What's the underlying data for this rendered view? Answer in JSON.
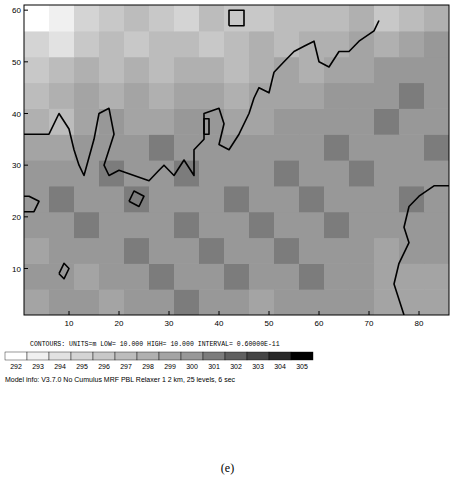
{
  "chart_data": {
    "type": "heatmap",
    "xlim": [
      1,
      86
    ],
    "ylim": [
      1,
      61
    ],
    "xticks": [
      10,
      20,
      30,
      40,
      50,
      60,
      70,
      80
    ],
    "yticks": [
      10,
      20,
      30,
      40,
      50,
      60
    ],
    "x_bins": [
      1,
      6,
      11,
      16,
      21,
      26,
      31,
      36,
      41,
      46,
      51,
      56,
      61,
      66,
      71,
      76,
      81,
      86
    ],
    "y_bins": [
      1,
      6,
      11,
      16,
      21,
      26,
      31,
      36,
      41,
      46,
      51,
      56,
      61
    ],
    "cells": [
      [
        299,
        300,
        300,
        299,
        300,
        300,
        301,
        300,
        300,
        299,
        300,
        300,
        300,
        300,
        299,
        299,
        299
      ],
      [
        300,
        300,
        299,
        300,
        300,
        301,
        300,
        300,
        301,
        300,
        300,
        301,
        300,
        300,
        299,
        299,
        299
      ],
      [
        299,
        300,
        300,
        300,
        301,
        300,
        300,
        301,
        300,
        300,
        301,
        300,
        300,
        300,
        299,
        300,
        300
      ],
      [
        300,
        300,
        301,
        300,
        300,
        300,
        301,
        300,
        300,
        301,
        300,
        300,
        301,
        300,
        300,
        300,
        300
      ],
      [
        300,
        301,
        300,
        300,
        301,
        300,
        300,
        300,
        301,
        300,
        300,
        301,
        300,
        300,
        300,
        301,
        300
      ],
      [
        300,
        300,
        300,
        301,
        300,
        300,
        301,
        300,
        300,
        300,
        301,
        300,
        300,
        301,
        300,
        300,
        300
      ],
      [
        299,
        299,
        300,
        300,
        300,
        301,
        300,
        300,
        300,
        300,
        300,
        300,
        301,
        300,
        300,
        300,
        301
      ],
      [
        298,
        297,
        299,
        300,
        299,
        299,
        300,
        300,
        299,
        299,
        300,
        300,
        300,
        300,
        301,
        300,
        300
      ],
      [
        297,
        298,
        299,
        298,
        299,
        298,
        299,
        299,
        298,
        299,
        299,
        299,
        300,
        300,
        300,
        301,
        300
      ],
      [
        296,
        297,
        298,
        297,
        298,
        297,
        298,
        298,
        297,
        298,
        299,
        298,
        299,
        299,
        300,
        300,
        300
      ],
      [
        295,
        294,
        296,
        297,
        296,
        297,
        297,
        296,
        297,
        298,
        297,
        298,
        298,
        299,
        298,
        299,
        300
      ],
      [
        292,
        293,
        295,
        296,
        297,
        296,
        295,
        297,
        296,
        296,
        297,
        297,
        297,
        298,
        296,
        297,
        298
      ]
    ],
    "contours": [
      {
        "x": [
          1,
          6,
          8,
          10,
          11,
          12,
          13,
          15,
          16,
          18,
          19,
          18,
          17,
          18,
          20,
          23,
          26,
          28,
          29,
          31,
          33,
          35,
          35,
          37,
          37,
          40,
          41,
          40,
          42,
          44,
          46,
          47,
          48,
          50,
          51,
          53,
          55,
          57,
          59,
          60,
          62,
          64,
          66,
          68,
          71,
          72
        ],
        "y": [
          36,
          36,
          40,
          37,
          33,
          30,
          28,
          35,
          40,
          41,
          36,
          33,
          30,
          28,
          29,
          28,
          27,
          29,
          30,
          28,
          31,
          28,
          33,
          35,
          40,
          41,
          38,
          34,
          33,
          36,
          40,
          43,
          45,
          44,
          48,
          50,
          52,
          53,
          54,
          50,
          49,
          52,
          52,
          54,
          56,
          58
        ]
      },
      {
        "x": [
          86,
          83,
          80,
          78,
          77,
          78,
          76,
          75,
          76,
          77
        ],
        "y": [
          26,
          26,
          24,
          22,
          18,
          15,
          11,
          7,
          4,
          1
        ]
      },
      {
        "x": [
          8,
          9,
          10,
          9,
          8
        ],
        "y": [
          9,
          8,
          10,
          11,
          9
        ]
      },
      {
        "x": [
          22,
          24,
          25,
          23,
          22
        ],
        "y": [
          23,
          22,
          24,
          25,
          23
        ]
      },
      {
        "x": [
          1,
          3,
          4,
          2,
          1
        ],
        "y": [
          21,
          21,
          23,
          24,
          24
        ]
      },
      {
        "x": [
          42,
          45,
          45,
          42,
          42
        ],
        "y": [
          57,
          57,
          60,
          60,
          57
        ]
      },
      {
        "x": [
          37,
          38,
          38,
          37,
          37
        ],
        "y": [
          36,
          36,
          39,
          39,
          36
        ]
      }
    ],
    "colorbar": {
      "ticks": [
        292,
        293,
        294,
        295,
        296,
        297,
        298,
        299,
        300,
        301,
        302,
        303,
        304,
        305
      ],
      "colors": [
        "#ffffff",
        "#f0f0f0",
        "#e2e2e2",
        "#d4d4d4",
        "#c8c8c8",
        "#bcbcbc",
        "#b0b0b0",
        "#a4a4a4",
        "#989898",
        "#7c7c7c",
        "#606060",
        "#444444",
        "#282828",
        "#000000"
      ]
    },
    "annotations": [
      "CONTOURS: UNITS=m LOW= 10.000 HIGH= 10.000 INTERVAL= 0.60000E-11",
      "Model info: V3.7.0 No Cumulus MRF PBL Relaxer 1 2 km, 25 levels, 6 sec",
      "(e)"
    ]
  }
}
